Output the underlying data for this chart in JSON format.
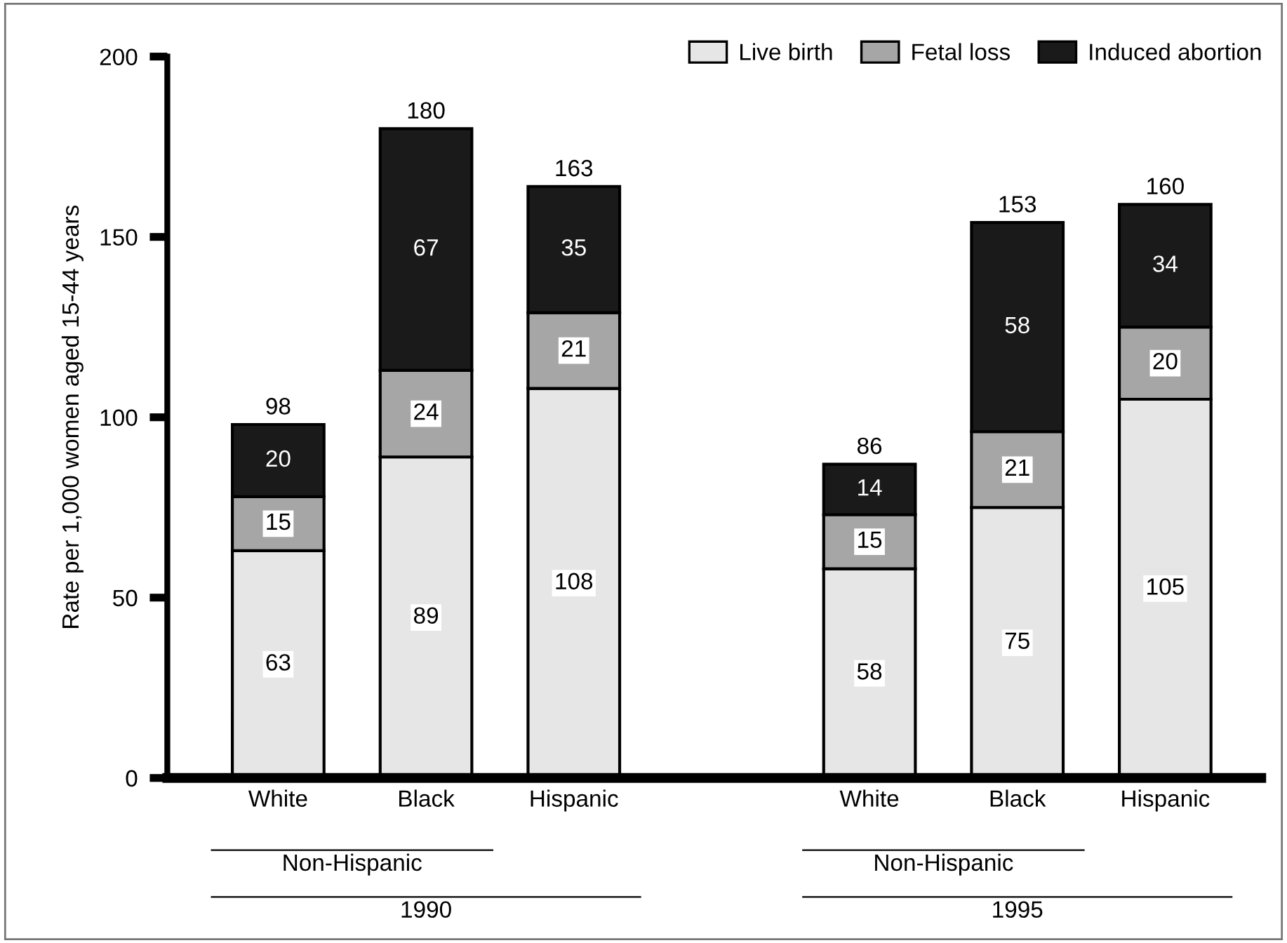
{
  "chart_data": {
    "type": "bar",
    "stacked": true,
    "ylabel": "Rate per 1,000 women aged 15-44 years",
    "categories": [
      "White",
      "Black",
      "Hispanic",
      null,
      "White",
      "Black",
      "Hispanic"
    ],
    "series": [
      {
        "name": "Live birth",
        "color": "#e6e6e6",
        "values": [
          63,
          89,
          108,
          null,
          58,
          75,
          105
        ]
      },
      {
        "name": "Fetal loss",
        "color": "#a6a6a6",
        "values": [
          15,
          24,
          21,
          null,
          15,
          21,
          20
        ]
      },
      {
        "name": "Induced abortion",
        "color": "#1a1a1a",
        "values": [
          20,
          67,
          35,
          null,
          14,
          58,
          34
        ]
      }
    ],
    "totals": [
      "98",
      "180",
      "163",
      null,
      "86",
      "153",
      "160"
    ],
    "data_labels": true,
    "ylim": [
      0,
      200
    ],
    "yticks": [
      0,
      50,
      100,
      150,
      200
    ],
    "grid": false,
    "legend": "top right",
    "annotations": [
      "Non-Hispanic",
      "1990",
      "Non-Hispanic",
      "1995"
    ]
  }
}
